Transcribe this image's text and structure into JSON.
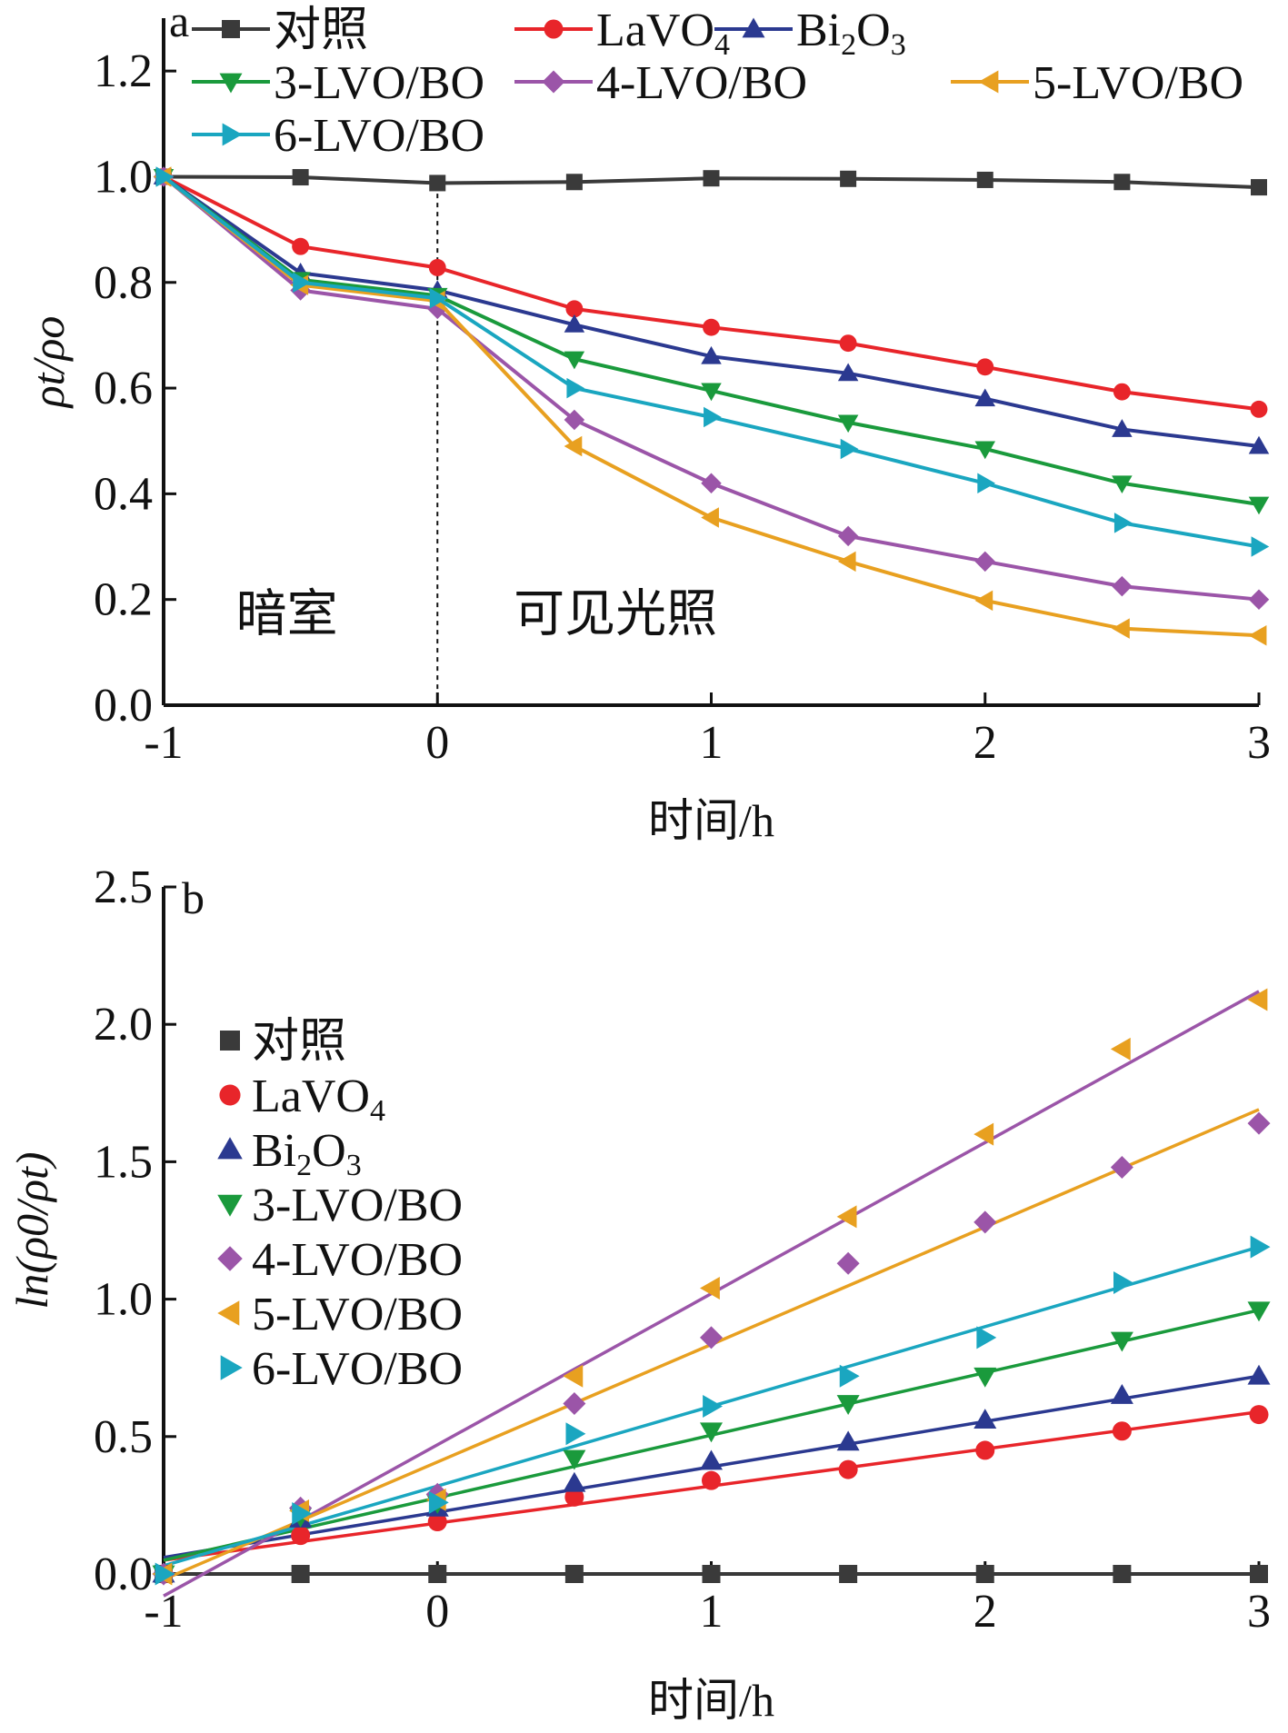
{
  "colors": {
    "对照": "#3a3a3a",
    "LaVO4": "#e8252a",
    "Bi2O3": "#2b3990",
    "3-LVO/BO": "#1a9a3c",
    "4-LVO/BO": "#9b55a8",
    "5-LVO/BO": "#e8a020",
    "6-LVO/BO": "#1aa6c0"
  },
  "chart_data": [
    {
      "type": "line",
      "panel_label": "a",
      "xlabel": "时间/h",
      "ylabel": "ρt/ρo",
      "xlim": [
        -1,
        3
      ],
      "ylim": [
        0,
        1.3
      ],
      "xticks": [
        "-1",
        "0",
        "1",
        "2",
        "3"
      ],
      "yticks": [
        "0.0",
        "0.2",
        "0.4",
        "0.6",
        "0.8",
        "1.0",
        "1.2"
      ],
      "region_labels": [
        "暗室",
        "可见光照"
      ],
      "divider_x": 0,
      "legend_position": "top",
      "x": [
        -1,
        -0.5,
        0,
        0.5,
        1,
        1.5,
        2,
        2.5,
        3
      ],
      "series": [
        {
          "name": "对照",
          "label_main": "对照",
          "label_sub": "",
          "label_tail": "",
          "marker": "square",
          "values": [
            1.0,
            0.999,
            0.988,
            0.99,
            0.997,
            0.996,
            0.994,
            0.99,
            0.98
          ]
        },
        {
          "name": "LaVO4",
          "label_main": "LaVO",
          "label_sub": "4",
          "label_tail": "",
          "marker": "circle",
          "values": [
            1.0,
            0.868,
            0.828,
            0.75,
            0.715,
            0.685,
            0.64,
            0.593,
            0.56
          ]
        },
        {
          "name": "Bi2O3",
          "label_main": "Bi",
          "label_sub": "2",
          "label_tail": "O3",
          "marker": "triangle-up",
          "values": [
            1.0,
            0.818,
            0.785,
            0.72,
            0.66,
            0.628,
            0.58,
            0.522,
            0.49
          ]
        },
        {
          "name": "3-LVO/BO",
          "label_main": "3-LVO/BO",
          "label_sub": "",
          "label_tail": "",
          "marker": "triangle-down",
          "values": [
            1.0,
            0.805,
            0.775,
            0.655,
            0.595,
            0.535,
            0.485,
            0.42,
            0.38
          ]
        },
        {
          "name": "4-LVO/BO",
          "label_main": "4-LVO/BO",
          "label_sub": "",
          "label_tail": "",
          "marker": "diamond",
          "values": [
            1.0,
            0.785,
            0.75,
            0.54,
            0.42,
            0.32,
            0.272,
            0.225,
            0.2
          ]
        },
        {
          "name": "5-LVO/BO",
          "label_main": "5-LVO/BO",
          "label_sub": "",
          "label_tail": "",
          "marker": "triangle-left",
          "values": [
            1.0,
            0.795,
            0.765,
            0.49,
            0.355,
            0.272,
            0.198,
            0.145,
            0.132
          ]
        },
        {
          "name": "6-LVO/BO",
          "label_main": "6-LVO/BO",
          "label_sub": "",
          "label_tail": "",
          "marker": "triangle-right",
          "values": [
            1.0,
            0.8,
            0.77,
            0.6,
            0.545,
            0.485,
            0.42,
            0.345,
            0.3
          ]
        }
      ]
    },
    {
      "type": "scatter",
      "panel_label": "b",
      "xlabel": "时间/h",
      "ylabel": "ln(ρ0/ρt)",
      "xlim": [
        -1,
        3
      ],
      "ylim": [
        0,
        2.5
      ],
      "xticks": [
        "-1",
        "0",
        "1",
        "2",
        "3"
      ],
      "yticks": [
        "0.0",
        "0.5",
        "1.0",
        "1.5",
        "2.0",
        "2.5"
      ],
      "legend_position": "left",
      "x": [
        -1,
        -0.5,
        0,
        0.5,
        1,
        1.5,
        2,
        2.5,
        3
      ],
      "series": [
        {
          "name": "对照",
          "label_main": "对照",
          "label_sub": "",
          "label_tail": "",
          "marker": "square",
          "values": [
            0.0,
            0.0,
            0.0,
            0.0,
            0.0,
            0.0,
            0.0,
            0.0,
            0.0
          ],
          "fit": [
            0.0,
            0.0
          ]
        },
        {
          "name": "LaVO4",
          "label_main": "LaVO",
          "label_sub": "4",
          "label_tail": "",
          "marker": "circle",
          "values": [
            0.0,
            0.14,
            0.19,
            0.28,
            0.34,
            0.38,
            0.45,
            0.52,
            0.58
          ],
          "fit": [
            0.05,
            0.59
          ]
        },
        {
          "name": "Bi2O3",
          "label_main": "Bi",
          "label_sub": "2",
          "label_tail": "O3",
          "marker": "triangle-up",
          "values": [
            0.0,
            0.2,
            0.24,
            0.33,
            0.41,
            0.48,
            0.56,
            0.65,
            0.72
          ],
          "fit": [
            0.06,
            0.72
          ]
        },
        {
          "name": "3-LVO/BO",
          "label_main": "3-LVO/BO",
          "label_sub": "",
          "label_tail": "",
          "marker": "triangle-down",
          "values": [
            0.0,
            0.21,
            0.26,
            0.42,
            0.52,
            0.62,
            0.72,
            0.85,
            0.96
          ],
          "fit": [
            0.05,
            0.96
          ]
        },
        {
          "name": "4-LVO/BO",
          "label_main": "4-LVO/BO",
          "label_sub": "",
          "label_tail": "",
          "marker": "diamond",
          "values": [
            0.0,
            0.24,
            0.29,
            0.62,
            0.86,
            1.13,
            1.28,
            1.48,
            1.64
          ],
          "fit": [
            -0.08,
            2.12
          ]
        },
        {
          "name": "5-LVO/BO",
          "label_main": "5-LVO/BO",
          "label_sub": "",
          "label_tail": "",
          "marker": "triangle-left",
          "values": [
            0.0,
            0.23,
            0.27,
            0.72,
            1.04,
            1.3,
            1.6,
            1.91,
            2.09
          ],
          "fit": [
            -0.02,
            1.69
          ]
        },
        {
          "name": "6-LVO/BO",
          "label_main": "6-LVO/BO",
          "label_sub": "",
          "label_tail": "",
          "marker": "triangle-right",
          "values": [
            0.0,
            0.22,
            0.26,
            0.51,
            0.61,
            0.72,
            0.86,
            1.06,
            1.19
          ],
          "fit": [
            0.03,
            1.19
          ]
        }
      ]
    }
  ]
}
